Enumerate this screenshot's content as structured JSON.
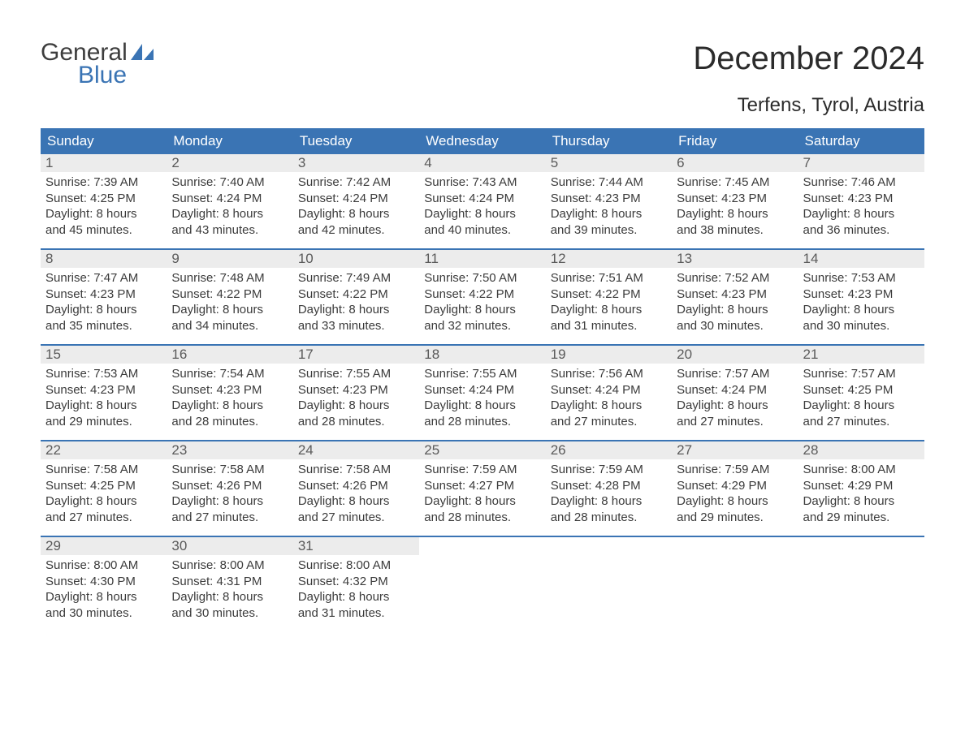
{
  "logo": {
    "line1": "General",
    "line2": "Blue"
  },
  "title": "December 2024",
  "location": "Terfens, Tyrol, Austria",
  "colors": {
    "header_bg": "#3a74b4",
    "header_text": "#ffffff",
    "daynum_bg": "#ececec",
    "daynum_text": "#5a5a5a",
    "body_text": "#3b3b3b",
    "week_border": "#3a74b4",
    "logo_blue": "#3a74b4",
    "logo_dark": "#3d3d3d",
    "background": "#ffffff"
  },
  "typography": {
    "title_fontsize": 40,
    "location_fontsize": 24,
    "dayheader_fontsize": 17,
    "daynum_fontsize": 17,
    "dayinfo_fontsize": 15,
    "font_family": "Arial"
  },
  "day_headers": [
    "Sunday",
    "Monday",
    "Tuesday",
    "Wednesday",
    "Thursday",
    "Friday",
    "Saturday"
  ],
  "weeks": [
    [
      {
        "num": "1",
        "sunrise": "Sunrise: 7:39 AM",
        "sunset": "Sunset: 4:25 PM",
        "d1": "Daylight: 8 hours",
        "d2": "and 45 minutes."
      },
      {
        "num": "2",
        "sunrise": "Sunrise: 7:40 AM",
        "sunset": "Sunset: 4:24 PM",
        "d1": "Daylight: 8 hours",
        "d2": "and 43 minutes."
      },
      {
        "num": "3",
        "sunrise": "Sunrise: 7:42 AM",
        "sunset": "Sunset: 4:24 PM",
        "d1": "Daylight: 8 hours",
        "d2": "and 42 minutes."
      },
      {
        "num": "4",
        "sunrise": "Sunrise: 7:43 AM",
        "sunset": "Sunset: 4:24 PM",
        "d1": "Daylight: 8 hours",
        "d2": "and 40 minutes."
      },
      {
        "num": "5",
        "sunrise": "Sunrise: 7:44 AM",
        "sunset": "Sunset: 4:23 PM",
        "d1": "Daylight: 8 hours",
        "d2": "and 39 minutes."
      },
      {
        "num": "6",
        "sunrise": "Sunrise: 7:45 AM",
        "sunset": "Sunset: 4:23 PM",
        "d1": "Daylight: 8 hours",
        "d2": "and 38 minutes."
      },
      {
        "num": "7",
        "sunrise": "Sunrise: 7:46 AM",
        "sunset": "Sunset: 4:23 PM",
        "d1": "Daylight: 8 hours",
        "d2": "and 36 minutes."
      }
    ],
    [
      {
        "num": "8",
        "sunrise": "Sunrise: 7:47 AM",
        "sunset": "Sunset: 4:23 PM",
        "d1": "Daylight: 8 hours",
        "d2": "and 35 minutes."
      },
      {
        "num": "9",
        "sunrise": "Sunrise: 7:48 AM",
        "sunset": "Sunset: 4:22 PM",
        "d1": "Daylight: 8 hours",
        "d2": "and 34 minutes."
      },
      {
        "num": "10",
        "sunrise": "Sunrise: 7:49 AM",
        "sunset": "Sunset: 4:22 PM",
        "d1": "Daylight: 8 hours",
        "d2": "and 33 minutes."
      },
      {
        "num": "11",
        "sunrise": "Sunrise: 7:50 AM",
        "sunset": "Sunset: 4:22 PM",
        "d1": "Daylight: 8 hours",
        "d2": "and 32 minutes."
      },
      {
        "num": "12",
        "sunrise": "Sunrise: 7:51 AM",
        "sunset": "Sunset: 4:22 PM",
        "d1": "Daylight: 8 hours",
        "d2": "and 31 minutes."
      },
      {
        "num": "13",
        "sunrise": "Sunrise: 7:52 AM",
        "sunset": "Sunset: 4:23 PM",
        "d1": "Daylight: 8 hours",
        "d2": "and 30 minutes."
      },
      {
        "num": "14",
        "sunrise": "Sunrise: 7:53 AM",
        "sunset": "Sunset: 4:23 PM",
        "d1": "Daylight: 8 hours",
        "d2": "and 30 minutes."
      }
    ],
    [
      {
        "num": "15",
        "sunrise": "Sunrise: 7:53 AM",
        "sunset": "Sunset: 4:23 PM",
        "d1": "Daylight: 8 hours",
        "d2": "and 29 minutes."
      },
      {
        "num": "16",
        "sunrise": "Sunrise: 7:54 AM",
        "sunset": "Sunset: 4:23 PM",
        "d1": "Daylight: 8 hours",
        "d2": "and 28 minutes."
      },
      {
        "num": "17",
        "sunrise": "Sunrise: 7:55 AM",
        "sunset": "Sunset: 4:23 PM",
        "d1": "Daylight: 8 hours",
        "d2": "and 28 minutes."
      },
      {
        "num": "18",
        "sunrise": "Sunrise: 7:55 AM",
        "sunset": "Sunset: 4:24 PM",
        "d1": "Daylight: 8 hours",
        "d2": "and 28 minutes."
      },
      {
        "num": "19",
        "sunrise": "Sunrise: 7:56 AM",
        "sunset": "Sunset: 4:24 PM",
        "d1": "Daylight: 8 hours",
        "d2": "and 27 minutes."
      },
      {
        "num": "20",
        "sunrise": "Sunrise: 7:57 AM",
        "sunset": "Sunset: 4:24 PM",
        "d1": "Daylight: 8 hours",
        "d2": "and 27 minutes."
      },
      {
        "num": "21",
        "sunrise": "Sunrise: 7:57 AM",
        "sunset": "Sunset: 4:25 PM",
        "d1": "Daylight: 8 hours",
        "d2": "and 27 minutes."
      }
    ],
    [
      {
        "num": "22",
        "sunrise": "Sunrise: 7:58 AM",
        "sunset": "Sunset: 4:25 PM",
        "d1": "Daylight: 8 hours",
        "d2": "and 27 minutes."
      },
      {
        "num": "23",
        "sunrise": "Sunrise: 7:58 AM",
        "sunset": "Sunset: 4:26 PM",
        "d1": "Daylight: 8 hours",
        "d2": "and 27 minutes."
      },
      {
        "num": "24",
        "sunrise": "Sunrise: 7:58 AM",
        "sunset": "Sunset: 4:26 PM",
        "d1": "Daylight: 8 hours",
        "d2": "and 27 minutes."
      },
      {
        "num": "25",
        "sunrise": "Sunrise: 7:59 AM",
        "sunset": "Sunset: 4:27 PM",
        "d1": "Daylight: 8 hours",
        "d2": "and 28 minutes."
      },
      {
        "num": "26",
        "sunrise": "Sunrise: 7:59 AM",
        "sunset": "Sunset: 4:28 PM",
        "d1": "Daylight: 8 hours",
        "d2": "and 28 minutes."
      },
      {
        "num": "27",
        "sunrise": "Sunrise: 7:59 AM",
        "sunset": "Sunset: 4:29 PM",
        "d1": "Daylight: 8 hours",
        "d2": "and 29 minutes."
      },
      {
        "num": "28",
        "sunrise": "Sunrise: 8:00 AM",
        "sunset": "Sunset: 4:29 PM",
        "d1": "Daylight: 8 hours",
        "d2": "and 29 minutes."
      }
    ],
    [
      {
        "num": "29",
        "sunrise": "Sunrise: 8:00 AM",
        "sunset": "Sunset: 4:30 PM",
        "d1": "Daylight: 8 hours",
        "d2": "and 30 minutes."
      },
      {
        "num": "30",
        "sunrise": "Sunrise: 8:00 AM",
        "sunset": "Sunset: 4:31 PM",
        "d1": "Daylight: 8 hours",
        "d2": "and 30 minutes."
      },
      {
        "num": "31",
        "sunrise": "Sunrise: 8:00 AM",
        "sunset": "Sunset: 4:32 PM",
        "d1": "Daylight: 8 hours",
        "d2": "and 31 minutes."
      },
      {
        "empty": true
      },
      {
        "empty": true
      },
      {
        "empty": true
      },
      {
        "empty": true
      }
    ]
  ]
}
